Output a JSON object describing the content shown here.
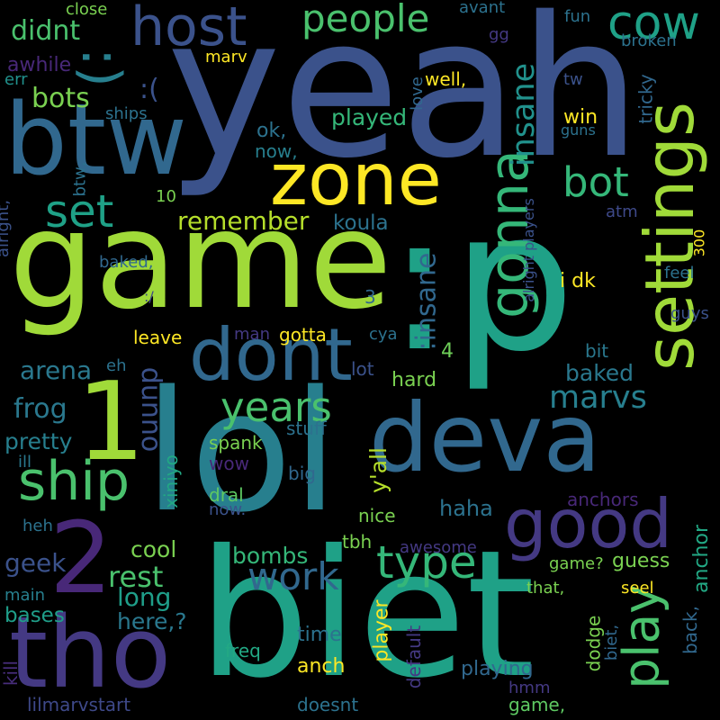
{
  "words": [
    {
      "t": "yeah",
      "c": "#3b528b"
    },
    {
      "t": "game",
      "c": "#a0da39"
    },
    {
      "t": ":p",
      "c": "#1fa187"
    },
    {
      "t": "lol",
      "c": "#277f8e"
    },
    {
      "t": "biet",
      "c": "#1fa187"
    },
    {
      "t": "deva",
      "c": "#31688e"
    },
    {
      "t": "btw",
      "c": "#31688e"
    },
    {
      "t": "tho",
      "c": "#443983"
    },
    {
      "t": "settings",
      "c": "#a0da39"
    },
    {
      "t": "zone",
      "c": "#fde725"
    },
    {
      "t": "dont",
      "c": "#31688e"
    },
    {
      "t": "good",
      "c": "#443983"
    },
    {
      "t": "host",
      "c": "#3b528b"
    },
    {
      "t": "gonna",
      "c": "#35b779"
    },
    {
      "t": "1",
      "c": "#a0da39"
    },
    {
      "t": "2",
      "c": "#482878"
    },
    {
      "t": "ship",
      "c": "#4ac16d"
    },
    {
      "t": "play",
      "c": "#4ac16d"
    },
    {
      "t": ":)",
      "c": "#277f8e"
    },
    {
      "t": "people",
      "c": "#4ac16d"
    },
    {
      "t": "cow",
      "c": "#1fa187"
    },
    {
      "t": "type",
      "c": "#35b779"
    },
    {
      "t": "set",
      "c": "#1fa187"
    },
    {
      "t": "bot",
      "c": "#35b779"
    },
    {
      "t": "years",
      "c": "#4ac16d"
    },
    {
      "t": "insane",
      "c": "#21918c"
    },
    {
      "t": ":insane",
      "c": "#31688e"
    },
    {
      "t": "work",
      "c": "#31688e"
    },
    {
      "t": "marvs",
      "c": "#277f8e"
    },
    {
      "t": "remember",
      "c": "#b5de2b"
    },
    {
      "t": "dunno",
      "c": "#3b528b"
    },
    {
      "t": "didnt",
      "c": "#4ac16d"
    },
    {
      "t": ":(",
      "c": "#3b528b"
    },
    {
      "t": "bots",
      "c": "#7ad151"
    },
    {
      "t": "rest",
      "c": "#4ac16d"
    },
    {
      "t": "frog",
      "c": "#2a788e"
    },
    {
      "t": "arena",
      "c": "#2a788e"
    },
    {
      "t": "pretty",
      "c": "#277f8e"
    },
    {
      "t": "geek",
      "c": "#3b528b"
    },
    {
      "t": "long",
      "c": "#1f9e89"
    },
    {
      "t": "cool",
      "c": "#7ad151"
    },
    {
      "t": "here,?",
      "c": "#2a788e"
    },
    {
      "t": "bases",
      "c": "#1f9e89"
    },
    {
      "t": "bombs",
      "c": "#35b779"
    },
    {
      "t": "played",
      "c": "#35b779"
    },
    {
      "t": "koula",
      "c": "#2c728e"
    },
    {
      "t": "y'all",
      "c": "#b5de2b"
    },
    {
      "t": "baked",
      "c": "#2a788e"
    },
    {
      "t": "haha",
      "c": "#2c728e"
    },
    {
      "t": "guess",
      "c": "#7ad151"
    },
    {
      "t": "playing",
      "c": "#31688e"
    },
    {
      "t": "anchor",
      "c": "#22a884"
    },
    {
      "t": "awhile",
      "c": "#482878"
    },
    {
      "t": "ok,",
      "c": "#2c728e"
    },
    {
      "t": "now,",
      "c": "#277f8e"
    },
    {
      "t": "well,",
      "c": "#fde725"
    },
    {
      "t": "win",
      "c": "#fde725"
    },
    {
      "t": "tricky",
      "c": "#31688e"
    },
    {
      "t": "hard",
      "c": "#7ad151"
    },
    {
      "t": "4",
      "c": "#6ece58"
    },
    {
      "t": "3",
      "c": "#31688e"
    },
    {
      "t": "i dk",
      "c": "#fde725"
    },
    {
      "t": "leave",
      "c": "#fde725"
    },
    {
      "t": "gotta",
      "c": "#fde725"
    },
    {
      "t": "lot",
      "c": "#3b528b"
    },
    {
      "t": "bit",
      "c": "#2a788e"
    },
    {
      "t": "stuff",
      "c": "#2c728e"
    },
    {
      "t": "spank",
      "c": "#7ad151"
    },
    {
      "t": "wow",
      "c": "#482878"
    },
    {
      "t": "big",
      "c": "#31688e"
    },
    {
      "t": "dral",
      "c": "#5ec962"
    },
    {
      "t": "now.",
      "c": "#3b528b"
    },
    {
      "t": "nice",
      "c": "#7ad151"
    },
    {
      "t": "xiniyo",
      "c": "#22a884"
    },
    {
      "t": "tbh",
      "c": "#7ad151"
    },
    {
      "t": "awesome",
      "c": "#443983"
    },
    {
      "t": "anchors",
      "c": "#482878"
    },
    {
      "t": "game?",
      "c": "#7ad151"
    },
    {
      "t": "that,",
      "c": "#7ad151"
    },
    {
      "t": "seel",
      "c": "#fde725"
    },
    {
      "t": "time",
      "c": "#2c728e"
    },
    {
      "t": "anch",
      "c": "#fde725"
    },
    {
      "t": "player",
      "c": "#fde725"
    },
    {
      "t": "default",
      "c": "#443983"
    },
    {
      "t": "dodge",
      "c": "#7ad151"
    },
    {
      "t": "biet,",
      "c": "#31688e"
    },
    {
      "t": "back,",
      "c": "#31688e"
    },
    {
      "t": "kill",
      "c": "#472d7b"
    },
    {
      "t": "lilmarvstart",
      "c": "#3e4989"
    },
    {
      "t": "doesnt",
      "c": "#2c728e"
    },
    {
      "t": "game,",
      "c": "#5ec962"
    },
    {
      "t": "hmm",
      "c": "#443983"
    },
    {
      "t": "freq",
      "c": "#22a884"
    },
    {
      "t": "main",
      "c": "#277f8e"
    },
    {
      "t": "heh",
      "c": "#2c728e"
    },
    {
      "t": "ill",
      "c": "#2a788e"
    },
    {
      "t": "eh",
      "c": "#2c728e"
    },
    {
      "t": "man",
      "c": "#443983"
    },
    {
      "t": "cya",
      "c": "#2c728e"
    },
    {
      "t": "baked,",
      "c": "#31688e"
    },
    {
      "t": ":/",
      "c": "#3e4989"
    },
    {
      "t": "alright,",
      "c": "#3b528b"
    },
    {
      "t": "btw,",
      "c": "#2c728e"
    },
    {
      "t": "10",
      "c": "#7ad151"
    },
    {
      "t": "ships",
      "c": "#2c728e"
    },
    {
      "t": "err",
      "c": "#21918c"
    },
    {
      "t": "marv",
      "c": "#fde725"
    },
    {
      "t": "close",
      "c": "#7ad151"
    },
    {
      "t": "avant",
      "c": "#2c728e"
    },
    {
      "t": "gg",
      "c": "#443983"
    },
    {
      "t": "fun",
      "c": "#2c728e"
    },
    {
      "t": "broken",
      "c": "#2c728e"
    },
    {
      "t": "love",
      "c": "#31688e"
    },
    {
      "t": "tw",
      "c": "#3b528b"
    },
    {
      "t": "guns",
      "c": "#2c728e"
    },
    {
      "t": "atm",
      "c": "#3e4989"
    },
    {
      "t": "alright players",
      "c": "#3b528b"
    },
    {
      "t": "feel",
      "c": "#2c728e"
    },
    {
      "t": "300",
      "c": "#fde725"
    },
    {
      "t": "guys",
      "c": "#3b528b"
    }
  ]
}
